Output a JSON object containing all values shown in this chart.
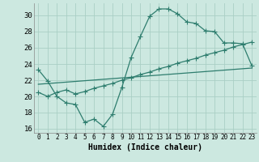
{
  "title": "",
  "xlabel": "Humidex (Indice chaleur)",
  "ylabel": "",
  "bg_color": "#cce8e0",
  "grid_color": "#aacfc5",
  "line_color": "#2e7d6e",
  "xlim": [
    -0.5,
    23.5
  ],
  "ylim": [
    15.5,
    31.5
  ],
  "xticks": [
    0,
    1,
    2,
    3,
    4,
    5,
    6,
    7,
    8,
    9,
    10,
    11,
    12,
    13,
    14,
    15,
    16,
    17,
    18,
    19,
    20,
    21,
    22,
    23
  ],
  "yticks": [
    16,
    18,
    20,
    22,
    24,
    26,
    28,
    30
  ],
  "line1_x": [
    0,
    1,
    2,
    3,
    4,
    5,
    6,
    7,
    8,
    9,
    10,
    11,
    12,
    13,
    14,
    15,
    16,
    17,
    18,
    19,
    20,
    21,
    22,
    23
  ],
  "line1_y": [
    23.3,
    21.9,
    20.0,
    19.2,
    19.0,
    16.8,
    17.2,
    16.3,
    17.8,
    21.1,
    24.8,
    27.4,
    29.9,
    30.8,
    30.8,
    30.2,
    29.2,
    29.0,
    28.1,
    28.0,
    26.6,
    26.6,
    26.5,
    23.8
  ],
  "line2_x": [
    0,
    1,
    2,
    3,
    4,
    5,
    6,
    7,
    8,
    9,
    10,
    11,
    12,
    13,
    14,
    15,
    16,
    17,
    18,
    19,
    20,
    21,
    22,
    23
  ],
  "line2_y": [
    20.5,
    20.0,
    20.5,
    20.8,
    20.3,
    20.6,
    21.0,
    21.3,
    21.6,
    22.0,
    22.3,
    22.7,
    23.0,
    23.4,
    23.7,
    24.1,
    24.4,
    24.7,
    25.1,
    25.4,
    25.7,
    26.1,
    26.4,
    26.7
  ],
  "line3_x": [
    0,
    23
  ],
  "line3_y": [
    21.5,
    23.5
  ],
  "marker": "+",
  "markersize": 4,
  "linewidth": 0.9
}
